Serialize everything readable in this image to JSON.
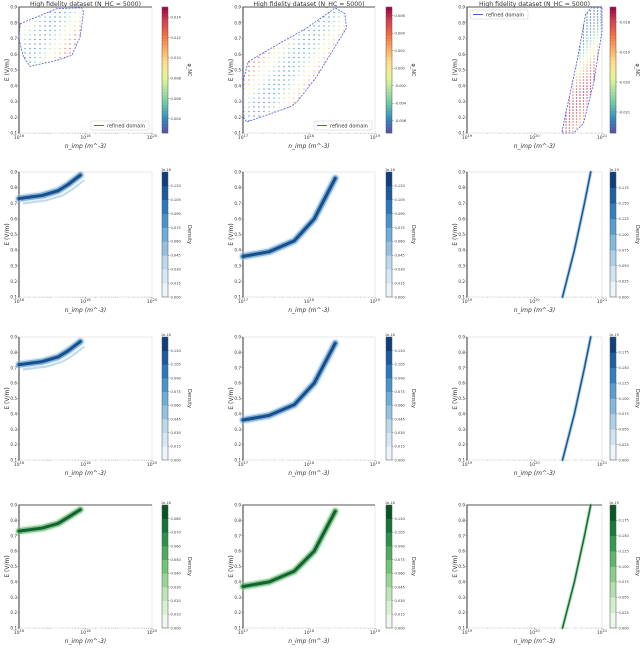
{
  "figure": {
    "ylabel": "E (V/m)",
    "xlabel": "n_imp (m^-3)",
    "ylim": [
      0.1,
      0.9
    ],
    "yticks": [
      "0.1",
      "0.2",
      "0.3",
      "0.4",
      "0.5",
      "0.6",
      "0.7",
      "0.8",
      "0.9"
    ],
    "xscale": "log",
    "colors": {
      "domain": "#4b5bdc",
      "row2": "#08519c",
      "row3": "#08519c",
      "row4": "#00692c"
    }
  },
  "chart_data": [
    {
      "type": "scatter",
      "row": 1,
      "col": 1,
      "title": "High fidelity dataset (N_HC = 5000)",
      "legend": "refined domain",
      "legend_position": "bottom-right",
      "xlim": [
        1e+16,
        1e+20
      ],
      "xticks": [
        "10^16",
        "10^18",
        "10^20"
      ],
      "colorbar": {
        "label": "φ_NC",
        "cmap": "Spectral_r",
        "ticks": [
          "0.004",
          "0.006",
          "0.008",
          "0.010",
          "0.012",
          "0.014"
        ]
      },
      "domain": [
        [
          1.08e+16,
          0.794
        ],
        [
          1.37e+17,
          0.889
        ],
        [
          7.7e+17,
          0.896
        ],
        [
          8.7e+17,
          0.868
        ],
        [
          6.9e+17,
          0.71
        ],
        [
          3.9e+17,
          0.593
        ],
        [
          1.37e+17,
          0.561
        ],
        [
          2.15e+16,
          0.523
        ],
        [
          1.36e+16,
          0.583
        ],
        [
          1e+16,
          0.699
        ]
      ]
    },
    {
      "type": "scatter",
      "row": 1,
      "col": 2,
      "title": "High fidelity dataset (N_HC = 5000)",
      "legend": "refined domain",
      "legend_position": "bottom-right",
      "xlim": [
        1e+17,
        1e+19
      ],
      "xticks": [
        "10^17",
        "10^18",
        "10^19"
      ],
      "colorbar": {
        "label": "φ_NC",
        "cmap": "Spectral_r",
        "ticks": [
          "-0.006",
          "-0.004",
          "-0.002",
          "0.000",
          "0.002",
          "0.004",
          "0.006"
        ]
      },
      "domain": [
        [
          1.01e+17,
          0.436
        ],
        [
          1.2e+17,
          0.553
        ],
        [
          3.6e+17,
          0.67
        ],
        [
          9.2e+17,
          0.766
        ],
        [
          2.5e+18,
          0.894
        ],
        [
          3.5e+18,
          0.857
        ],
        [
          3.7e+18,
          0.766
        ],
        [
          1.3e+18,
          0.457
        ],
        [
          6.6e+17,
          0.298
        ],
        [
          5.2e+17,
          0.266
        ],
        [
          1.14e+17,
          0.17
        ],
        [
          1.01e+17,
          0.202
        ]
      ]
    },
    {
      "type": "scatter",
      "row": 1,
      "col": 3,
      "title": "High fidelity dataset (N_HC = 5000)",
      "legend": "refined domain",
      "legend_position": "top-left",
      "xlim": [
        1e+19,
        1e+21
      ],
      "xticks": [
        "10^19",
        "10^20",
        "10^21"
      ],
      "colorbar": {
        "label": "φ_NC",
        "cmap": "Spectral_r",
        "ticks": [
          "-0.021",
          "-0.020",
          "-0.019",
          "-0.018"
        ]
      },
      "domain": [
        [
          2.55e+20,
          0.1
        ],
        [
          3.8e+20,
          0.1
        ],
        [
          5.3e+20,
          0.16
        ],
        [
          7.5e+20,
          0.415
        ],
        [
          1e+21,
          0.745
        ],
        [
          1e+21,
          0.9
        ],
        [
          7.1e+20,
          0.9
        ],
        [
          5.7e+20,
          0.851
        ],
        [
          4.3e+20,
          0.564
        ],
        [
          2.7e+20,
          0.16
        ]
      ]
    },
    {
      "type": "heatmap",
      "row": 2,
      "col": 1,
      "xlim": [
        1e+16,
        1e+20
      ],
      "xticks": [
        "10^16",
        "10^18",
        "10^20"
      ],
      "colorbar": {
        "label": "Density",
        "offset": "1e-18",
        "cmap": "Blues",
        "ticks": [
          "0.000",
          "0.015",
          "0.030",
          "0.045",
          "0.060",
          "0.075",
          "0.090",
          "0.105",
          "0.120"
        ]
      },
      "ridge": [
        [
          1e+16,
          0.73
        ],
        [
          5e+16,
          0.75
        ],
        [
          1.5e+17,
          0.78
        ],
        [
          3e+17,
          0.82
        ],
        [
          7e+17,
          0.88
        ]
      ]
    },
    {
      "type": "heatmap",
      "row": 2,
      "col": 2,
      "xlim": [
        1e+17,
        1e+19
      ],
      "xticks": [
        "10^17",
        "10^18",
        "10^19"
      ],
      "colorbar": {
        "label": "Density",
        "offset": "1e-18",
        "cmap": "Blues",
        "ticks": [
          "0.000",
          "0.015",
          "0.030",
          "0.045",
          "0.060",
          "0.075",
          "0.090",
          "0.105",
          "0.120"
        ]
      },
      "ridge": [
        [
          1e+17,
          0.36
        ],
        [
          2.5e+17,
          0.39
        ],
        [
          6e+17,
          0.46
        ],
        [
          1.2e+18,
          0.6
        ],
        [
          2.5e+18,
          0.86
        ]
      ]
    },
    {
      "type": "heatmap",
      "row": 2,
      "col": 3,
      "xlim": [
        1e+19,
        1e+21
      ],
      "xticks": [
        "10^19",
        "10^20",
        "10^21"
      ],
      "colorbar": {
        "label": "Density",
        "offset": "1e-19",
        "cmap": "Blues",
        "ticks": [
          "0.000",
          "0.025",
          "0.050",
          "0.075",
          "0.100",
          "0.125",
          "0.150",
          "0.175"
        ]
      },
      "ridge": [
        [
          2.6e+20,
          0.1
        ],
        [
          3.9e+20,
          0.4
        ],
        [
          5.5e+20,
          0.7
        ],
        [
          6.8e+20,
          0.9
        ]
      ]
    },
    {
      "type": "heatmap",
      "row": 3,
      "col": 1,
      "xlim": [
        1e+16,
        1e+20
      ],
      "xticks": [
        "10^16",
        "10^18",
        "10^20"
      ],
      "colorbar": {
        "label": "Density",
        "offset": "1e-18",
        "cmap": "Blues",
        "ticks": [
          "0.000",
          "0.015",
          "0.030",
          "0.045",
          "0.060",
          "0.075",
          "0.090",
          "0.105",
          "0.120"
        ]
      },
      "ridge": [
        [
          1e+16,
          0.72
        ],
        [
          5e+16,
          0.74
        ],
        [
          1.5e+17,
          0.77
        ],
        [
          3e+17,
          0.81
        ],
        [
          7e+17,
          0.87
        ]
      ]
    },
    {
      "type": "heatmap",
      "row": 3,
      "col": 2,
      "xlim": [
        1e+17,
        1e+19
      ],
      "xticks": [
        "10^17",
        "10^18",
        "10^19"
      ],
      "colorbar": {
        "label": "Density",
        "offset": "1e-18",
        "cmap": "Blues",
        "ticks": [
          "0.000",
          "0.015",
          "0.030",
          "0.045",
          "0.060",
          "0.075",
          "0.090",
          "0.105",
          "0.120"
        ]
      },
      "ridge": [
        [
          1e+17,
          0.36
        ],
        [
          2.5e+17,
          0.39
        ],
        [
          6e+17,
          0.46
        ],
        [
          1.2e+18,
          0.6
        ],
        [
          2.5e+18,
          0.86
        ]
      ]
    },
    {
      "type": "heatmap",
      "row": 3,
      "col": 3,
      "xlim": [
        1e+19,
        1e+21
      ],
      "xticks": [
        "10^19",
        "10^20",
        "10^21"
      ],
      "colorbar": {
        "label": "Density",
        "offset": "1e-19",
        "cmap": "Blues",
        "ticks": [
          "0.000",
          "0.025",
          "0.050",
          "0.075",
          "0.100",
          "0.125",
          "0.150",
          "0.175"
        ]
      },
      "ridge": [
        [
          2.6e+20,
          0.1
        ],
        [
          3.9e+20,
          0.4
        ],
        [
          5.5e+20,
          0.7
        ],
        [
          6.8e+20,
          0.9
        ]
      ]
    },
    {
      "type": "heatmap",
      "row": 4,
      "col": 1,
      "xlim": [
        1e+16,
        1e+20
      ],
      "xticks": [
        "10^16",
        "10^18",
        "10^20"
      ],
      "colorbar": {
        "label": "Density",
        "offset": "1e-18",
        "cmap": "Greens",
        "ticks": [
          "0.000",
          "0.010",
          "0.020",
          "0.030",
          "0.040",
          "0.050",
          "0.060",
          "0.070",
          "0.080"
        ]
      },
      "ridge": [
        [
          1e+16,
          0.73
        ],
        [
          5e+16,
          0.75
        ],
        [
          1.5e+17,
          0.78
        ],
        [
          3e+17,
          0.82
        ],
        [
          7e+17,
          0.87
        ]
      ]
    },
    {
      "type": "heatmap",
      "row": 4,
      "col": 2,
      "xlim": [
        1e+17,
        1e+19
      ],
      "xticks": [
        "10^17",
        "10^18",
        "10^19"
      ],
      "colorbar": {
        "label": "Density",
        "offset": "1e-18",
        "cmap": "Greens",
        "ticks": [
          "0.000",
          "0.015",
          "0.030",
          "0.045",
          "0.060",
          "0.075",
          "0.090",
          "0.105",
          "0.120"
        ]
      },
      "ridge": [
        [
          1e+17,
          0.37
        ],
        [
          2.5e+17,
          0.4
        ],
        [
          6e+17,
          0.47
        ],
        [
          1.2e+18,
          0.6
        ],
        [
          2.5e+18,
          0.86
        ]
      ]
    },
    {
      "type": "heatmap",
      "row": 4,
      "col": 3,
      "xlim": [
        1e+19,
        1e+21
      ],
      "xticks": [
        "10^19",
        "10^20",
        "10^21"
      ],
      "colorbar": {
        "label": "Density",
        "offset": "1e-19",
        "cmap": "Greens",
        "ticks": [
          "0.000",
          "0.025",
          "0.050",
          "0.075",
          "0.100",
          "0.125",
          "0.150",
          "0.175"
        ]
      },
      "ridge": [
        [
          2.6e+20,
          0.1
        ],
        [
          3.9e+20,
          0.4
        ],
        [
          5.5e+20,
          0.7
        ],
        [
          6.8e+20,
          0.9
        ]
      ]
    }
  ]
}
